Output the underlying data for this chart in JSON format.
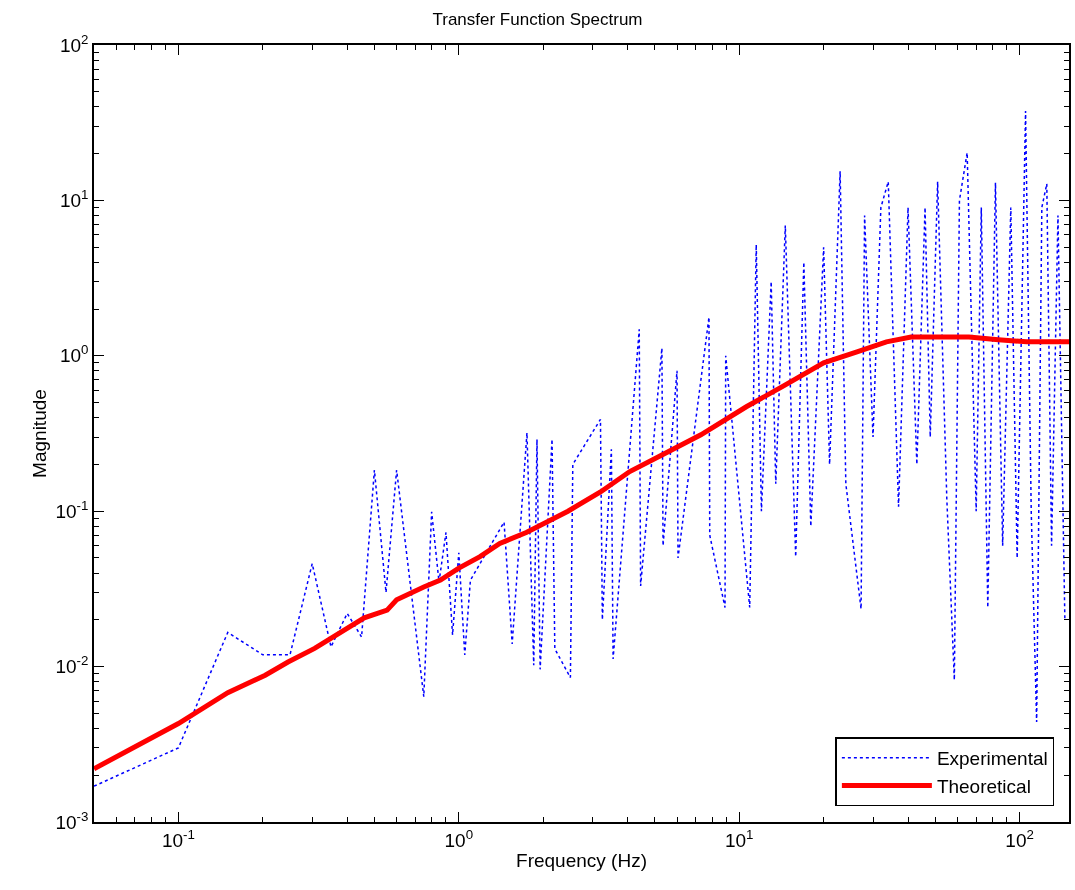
{
  "chart_data": {
    "type": "line",
    "title": "Transfer Function Spectrum",
    "xlabel": "Frequency (Hz)",
    "ylabel": "Magnitude",
    "log": "xy",
    "legend": "bottom right",
    "marker": "none",
    "xlim": [
      0.05,
      150
    ],
    "ylim": [
      0.001,
      100
    ],
    "xticks": [
      {
        "value": 0.1,
        "label": "10$^{-1}$"
      },
      {
        "value": 1,
        "label": "10$^{0}$"
      },
      {
        "value": 10,
        "label": "10$^{1}$"
      },
      {
        "value": 100,
        "label": "10$^{2}$"
      }
    ],
    "yticks": [
      {
        "value": 0.001,
        "label": "10$^{-3}$"
      },
      {
        "value": 0.01,
        "label": "10$^{-2}$"
      },
      {
        "value": 0.1,
        "label": "10$^{-1}$"
      },
      {
        "value": 1,
        "label": "10$^{0}$"
      },
      {
        "value": 10,
        "label": "10$^{1}$"
      },
      {
        "value": 100,
        "label": "10$^{2}$"
      }
    ],
    "series": [
      {
        "name": "Experimental",
        "color": "#0000ff",
        "line_style": "dotted",
        "x": [
          0.05,
          0.1,
          0.15,
          0.2,
          0.25,
          0.3,
          0.35,
          0.4,
          0.45,
          0.5,
          0.55,
          0.6,
          0.75,
          0.8,
          0.85,
          0.9,
          0.95,
          1.0,
          1.05,
          1.1,
          1.45,
          1.55,
          1.75,
          1.85,
          1.9,
          1.95,
          2.15,
          2.2,
          2.5,
          2.55,
          3.2,
          3.25,
          3.5,
          3.55,
          4.4,
          4.45,
          5.3,
          5.35,
          6.0,
          6.05,
          7.8,
          7.85,
          8.9,
          8.95,
          10.9,
          11.5,
          12.0,
          13.0,
          13.5,
          14.6,
          15.9,
          17.0,
          18.0,
          20.0,
          21.0,
          22.9,
          24.0,
          27.2,
          28.0,
          30.0,
          32.0,
          34.0,
          37.0,
          40.0,
          43.0,
          46.0,
          48.0,
          51.0,
          55.0,
          58.5,
          61.0,
          65.0,
          70.0,
          73.0,
          77.0,
          82.0,
          87.0,
          93.0,
          98.0,
          105.0,
          110.0,
          115.0,
          120.0,
          125.0,
          130.0,
          137.0,
          145.0
        ],
        "values": [
          0.0017,
          0.003,
          0.0166,
          0.0119,
          0.0119,
          0.046,
          0.0134,
          0.022,
          0.0155,
          0.184,
          0.03,
          0.184,
          0.0064,
          0.099,
          0.035,
          0.073,
          0.016,
          0.054,
          0.0119,
          0.036,
          0.085,
          0.014,
          0.32,
          0.0102,
          0.29,
          0.0096,
          0.29,
          0.013,
          0.0085,
          0.2,
          0.39,
          0.02,
          0.25,
          0.0112,
          1.48,
          0.033,
          1.12,
          0.06,
          0.8,
          0.05,
          1.77,
          0.07,
          0.024,
          1.0,
          0.024,
          5.2,
          0.1,
          3.0,
          0.15,
          6.9,
          0.051,
          4.0,
          0.08,
          5.0,
          0.2,
          15.4,
          0.15,
          0.0235,
          8.0,
          0.3,
          9.0,
          13.2,
          0.107,
          9.0,
          0.2,
          9.0,
          0.3,
          13.2,
          0.12,
          0.0082,
          10.0,
          20.3,
          0.1,
          9.0,
          0.024,
          13.0,
          0.06,
          9.0,
          0.05,
          37.6,
          0.1,
          0.0044,
          9.0,
          12.8,
          0.06,
          8.0,
          0.02
        ]
      },
      {
        "name": "Theoretical",
        "color": "#ff0000",
        "line_style": "solid",
        "x": [
          0.05,
          0.1,
          0.15,
          0.204,
          0.246,
          0.306,
          0.46,
          0.555,
          0.6,
          0.75,
          0.86,
          1.0,
          1.19,
          1.4,
          1.74,
          2.45,
          3.2,
          4.07,
          5.3,
          7.3,
          10.6,
          14.4,
          20.0,
          26.3,
          33.5,
          41,
          66,
          84,
          106,
          150
        ],
        "values": [
          0.0022,
          0.0043,
          0.0068,
          0.0088,
          0.0107,
          0.0131,
          0.0206,
          0.0231,
          0.0269,
          0.0325,
          0.036,
          0.043,
          0.051,
          0.062,
          0.073,
          0.1,
          0.133,
          0.18,
          0.23,
          0.31,
          0.47,
          0.64,
          0.9,
          1.06,
          1.23,
          1.32,
          1.32,
          1.27,
          1.23,
          1.23
        ]
      }
    ]
  }
}
